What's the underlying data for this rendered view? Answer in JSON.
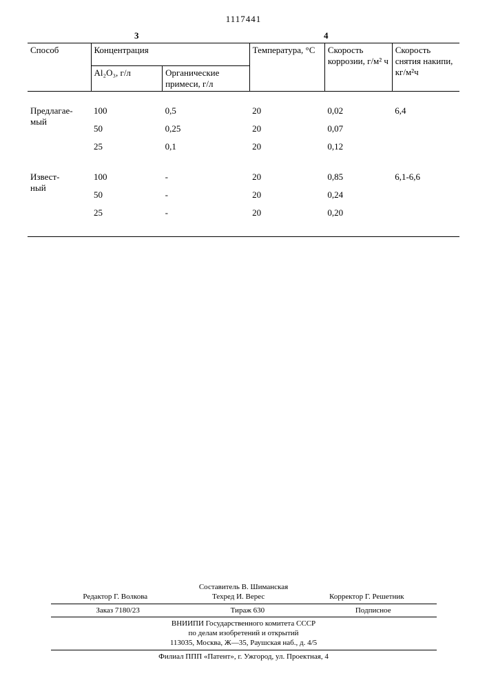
{
  "doc_number": "1117441",
  "col_left": "3",
  "col_right": "4",
  "table": {
    "headers": {
      "method": "Способ",
      "concentration": "Концентрация",
      "al2o3": "Al₂O₃, г/л",
      "organic": "Органические примеси, г/л",
      "temperature": "Температура, °С",
      "corrosion": "Скорость коррозии, г/м² ч",
      "scale_removal": "Скорость снятия накипи, кг/м²ч"
    },
    "groups": [
      {
        "label": "Предлагае-\nмый",
        "scale": "6,4",
        "rows": [
          {
            "al": "100",
            "org": "0,5",
            "t": "20",
            "corr": "0,02"
          },
          {
            "al": "50",
            "org": "0,25",
            "t": "20",
            "corr": "0,07"
          },
          {
            "al": "25",
            "org": "0,1",
            "t": "20",
            "corr": "0,12"
          }
        ]
      },
      {
        "label": "Извест-\nный",
        "scale": "6,1-6,6",
        "rows": [
          {
            "al": "100",
            "org": "-",
            "t": "20",
            "corr": "0,85"
          },
          {
            "al": "50",
            "org": "-",
            "t": "20",
            "corr": "0,24"
          },
          {
            "al": "25",
            "org": "-",
            "t": "20",
            "corr": "0,20"
          }
        ]
      }
    ]
  },
  "footer": {
    "compiler": "Составитель В. Шиманская",
    "editor": "Редактор Г. Волкова",
    "tech": "Техред И. Верес",
    "corrector": "Корректор Г. Решетник",
    "order": "Заказ 7180/23",
    "print_run": "Тираж 630",
    "subscription": "Подписное",
    "org1": "ВНИИПИ Государственного комитета СССР",
    "org2": "по делам изобретений и открытий",
    "address1": "113035, Москва, Ж—35, Раушская наб., д. 4/5",
    "address2": "Филиал ППП «Патент», г. Ужгород, ул. Проектная, 4"
  }
}
